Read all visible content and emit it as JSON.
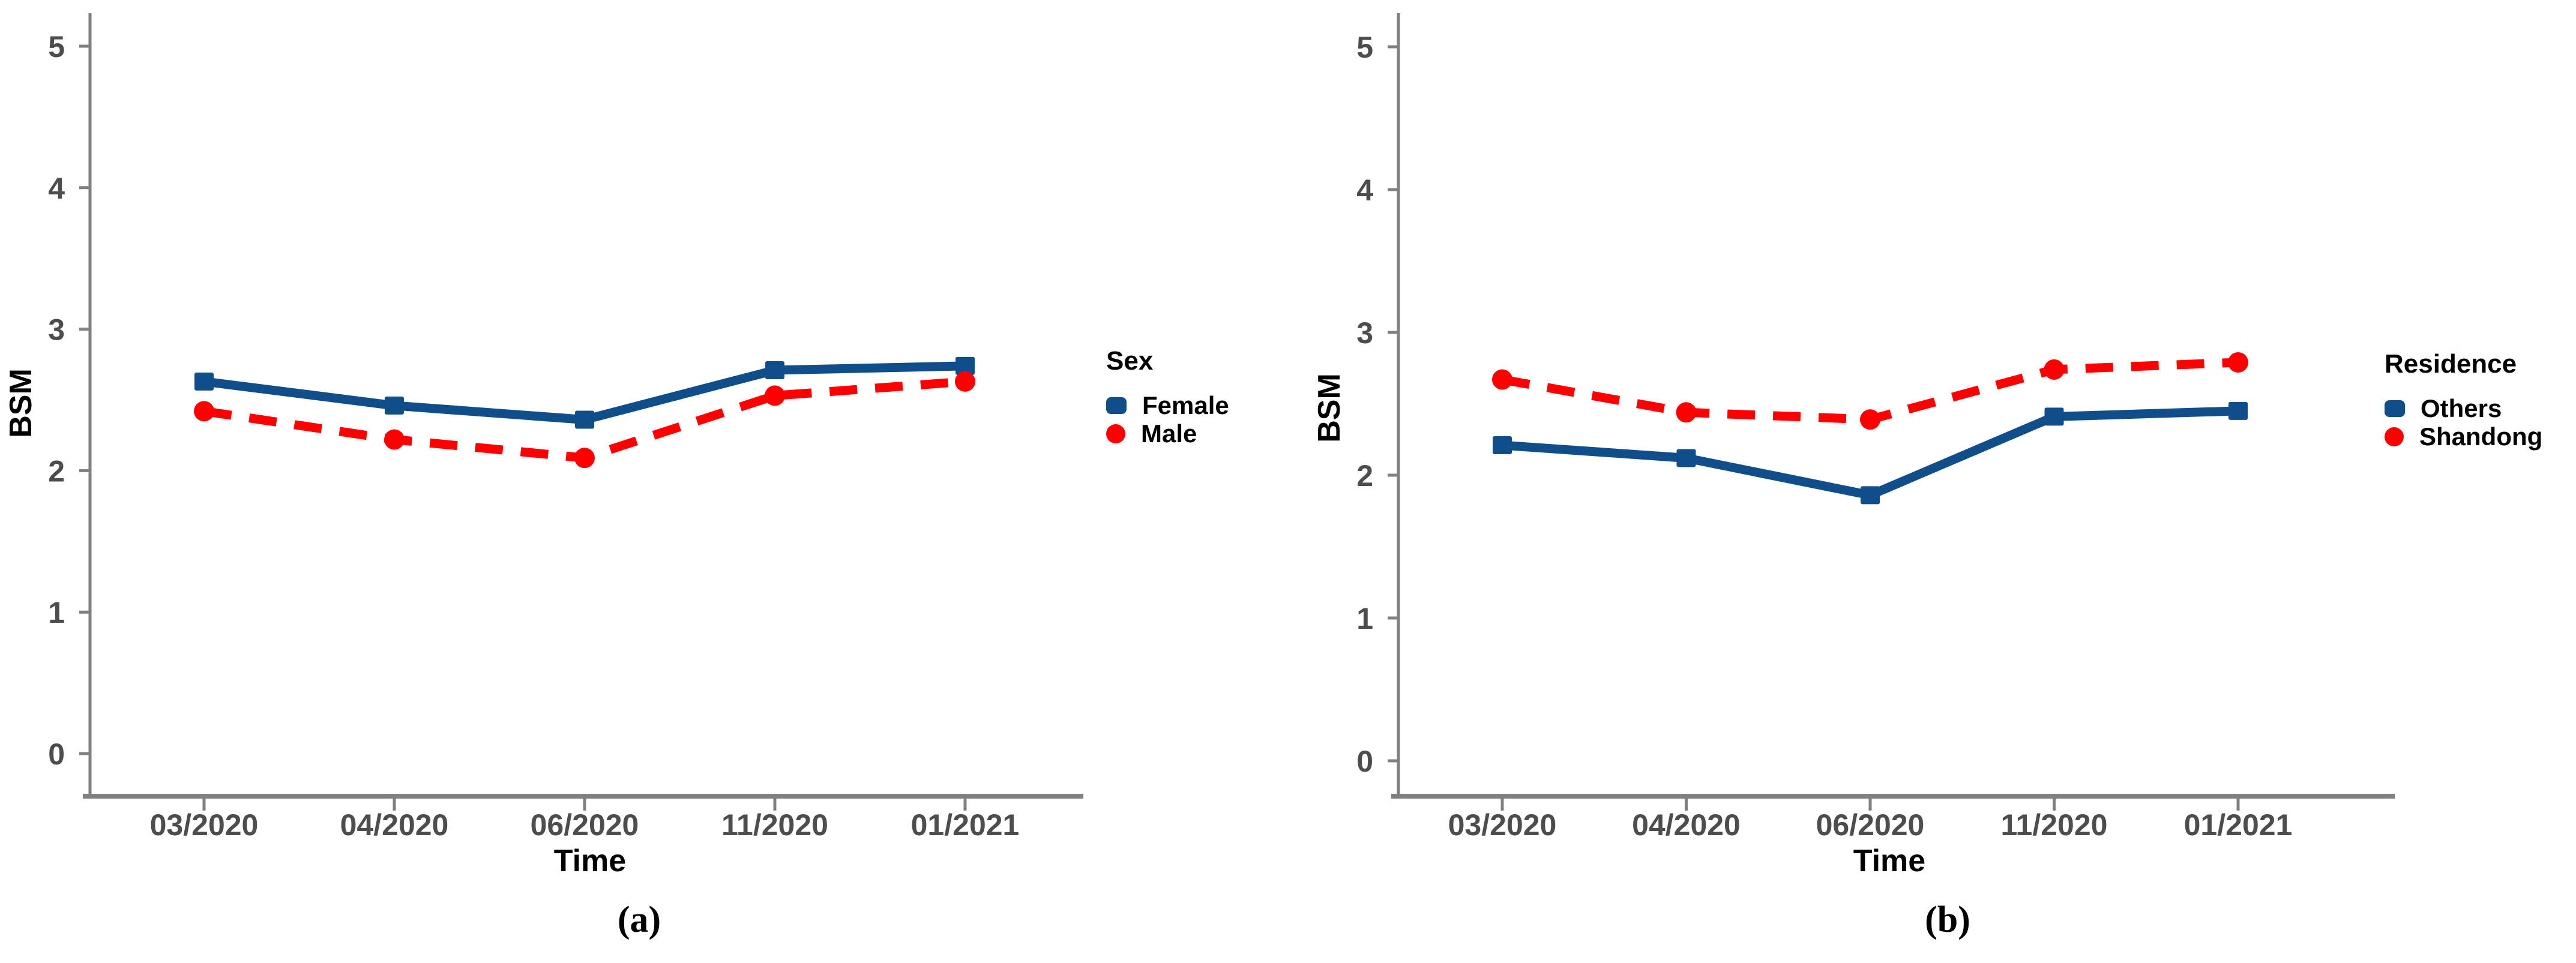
{
  "figure": {
    "background": "#ffffff",
    "axis_line_color": "#808080",
    "tick_text_color": "#4d4d4d",
    "text_color": "#000000"
  },
  "chart_data": [
    {
      "type": "line",
      "caption": "(a)",
      "xlabel": "Time",
      "ylabel": "BSM",
      "legend_title": "Sex",
      "legend_position": "right",
      "grid": "off",
      "categories": [
        "03/2020",
        "04/2020",
        "06/2020",
        "11/2020",
        "01/2021"
      ],
      "yticks": [
        0,
        1,
        2,
        3,
        4,
        5
      ],
      "ylim": [
        0,
        5.3
      ],
      "series": [
        {
          "name": "Female",
          "color": "#104E8B",
          "line": "solid",
          "marker": "square",
          "values": [
            2.63,
            2.46,
            2.36,
            2.71,
            2.74
          ]
        },
        {
          "name": "Male",
          "color": "#FF0000",
          "line": "dashed",
          "marker": "circle",
          "values": [
            2.42,
            2.22,
            2.09,
            2.53,
            2.63
          ]
        }
      ]
    },
    {
      "type": "line",
      "caption": "(b)",
      "xlabel": "Time",
      "ylabel": "BSM",
      "legend_title": "Residence",
      "legend_position": "right",
      "grid": "off",
      "categories": [
        "03/2020",
        "04/2020",
        "06/2020",
        "11/2020",
        "01/2021"
      ],
      "yticks": [
        0,
        1,
        2,
        3,
        4,
        5
      ],
      "ylim": [
        0,
        5.3
      ],
      "series": [
        {
          "name": "Others",
          "color": "#104E8B",
          "line": "solid",
          "marker": "square",
          "values": [
            2.21,
            2.12,
            1.86,
            2.41,
            2.45
          ]
        },
        {
          "name": "Shandong",
          "color": "#FF0000",
          "line": "dashed",
          "marker": "circle",
          "values": [
            2.67,
            2.44,
            2.39,
            2.74,
            2.79
          ]
        }
      ]
    }
  ]
}
